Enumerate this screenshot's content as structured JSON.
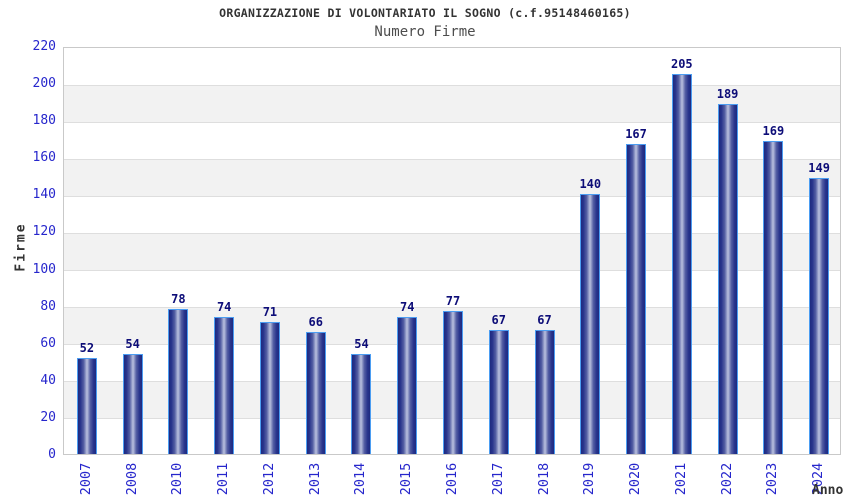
{
  "header": {
    "title": "ORGANIZZAZIONE DI VOLONTARIATO IL SOGNO (c.f.95148460165)",
    "subtitle": "Numero Firme"
  },
  "chart_data": {
    "type": "bar",
    "title": "ORGANIZZAZIONE DI VOLONTARIATO IL SOGNO (c.f.95148460165)",
    "subtitle": "Numero Firme",
    "xlabel": "Anno",
    "ylabel": "Firme",
    "categories": [
      "2007",
      "2008",
      "2010",
      "2011",
      "2012",
      "2013",
      "2014",
      "2015",
      "2016",
      "2017",
      "2018",
      "2019",
      "2020",
      "2021",
      "2022",
      "2023",
      "2024"
    ],
    "values": [
      52,
      54,
      78,
      74,
      71,
      66,
      54,
      74,
      77,
      67,
      67,
      140,
      167,
      205,
      189,
      169,
      149
    ],
    "ylim": [
      0,
      220
    ],
    "ytick_step": 20,
    "grid": true,
    "legend_position": "none",
    "band_style": "alternating horizontal bands, gray on odd 20-unit bands",
    "colors": {
      "background": "#ffffff",
      "title_text": "#333333",
      "subtitle_text": "#4d4d4d",
      "tick_label_blue": "#2626cc",
      "value_label_navy": "#0d0d78",
      "bar_edge": "#1e2a80",
      "bar_mid": "#28348c",
      "bar_highlight": "#b9bfde",
      "bar_border": "#4b9df2",
      "band_gray": "#f2f2f2",
      "gridline": "#dedede",
      "plot_border": "#c9c9c9"
    }
  }
}
